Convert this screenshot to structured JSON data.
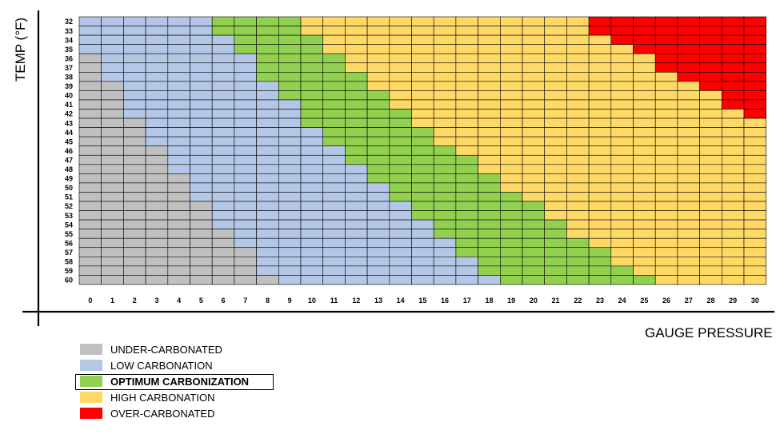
{
  "chart_data": {
    "type": "heatmap",
    "title": "",
    "xlabel": "GAUGE PRESSURE",
    "ylabel": "TEMP (°F)",
    "x_ticks": [
      0,
      1,
      2,
      3,
      4,
      5,
      6,
      7,
      8,
      9,
      10,
      11,
      12,
      13,
      14,
      15,
      16,
      17,
      18,
      19,
      20,
      21,
      22,
      23,
      24,
      25,
      26,
      27,
      28,
      29,
      30
    ],
    "y_ticks": [
      32,
      33,
      34,
      35,
      36,
      37,
      38,
      39,
      40,
      41,
      42,
      43,
      44,
      45,
      46,
      47,
      48,
      49,
      50,
      51,
      52,
      53,
      54,
      55,
      56,
      57,
      58,
      59,
      60
    ],
    "categories": [
      {
        "key": "under",
        "label": "UNDER-CARBONATED",
        "color": "#c0c0c0"
      },
      {
        "key": "low",
        "label": "LOW CARBONATION",
        "color": "#b4c7e7"
      },
      {
        "key": "optimum",
        "label": "OPTIMUM CARBONIZATION",
        "color": "#92d050",
        "highlighted": true
      },
      {
        "key": "high",
        "label": "HIGH CARBONATION",
        "color": "#ffd966"
      },
      {
        "key": "over",
        "label": "OVER-CARBONATED",
        "color": "#ff0000"
      }
    ],
    "rows": [
      {
        "temp": 32,
        "under_max": -1,
        "low_max": 5,
        "opt_max": 9,
        "over_min": 23
      },
      {
        "temp": 33,
        "under_max": -1,
        "low_max": 5,
        "opt_max": 9,
        "over_min": 23
      },
      {
        "temp": 34,
        "under_max": -1,
        "low_max": 6,
        "opt_max": 10,
        "over_min": 24
      },
      {
        "temp": 35,
        "under_max": -1,
        "low_max": 6,
        "opt_max": 10,
        "over_min": 25
      },
      {
        "temp": 36,
        "under_max": 0,
        "low_max": 7,
        "opt_max": 11,
        "over_min": 26
      },
      {
        "temp": 37,
        "under_max": 0,
        "low_max": 7,
        "opt_max": 11,
        "over_min": 26
      },
      {
        "temp": 38,
        "under_max": 0,
        "low_max": 7,
        "opt_max": 12,
        "over_min": 27
      },
      {
        "temp": 39,
        "under_max": 1,
        "low_max": 8,
        "opt_max": 12,
        "over_min": 28
      },
      {
        "temp": 40,
        "under_max": 1,
        "low_max": 8,
        "opt_max": 13,
        "over_min": 29
      },
      {
        "temp": 41,
        "under_max": 1,
        "low_max": 9,
        "opt_max": 13,
        "over_min": 29
      },
      {
        "temp": 42,
        "under_max": 1,
        "low_max": 9,
        "opt_max": 14,
        "over_min": 30
      },
      {
        "temp": 43,
        "under_max": 2,
        "low_max": 9,
        "opt_max": 14,
        "over_min": 31
      },
      {
        "temp": 44,
        "under_max": 2,
        "low_max": 10,
        "opt_max": 15,
        "over_min": 31
      },
      {
        "temp": 45,
        "under_max": 2,
        "low_max": 10,
        "opt_max": 15,
        "over_min": 31
      },
      {
        "temp": 46,
        "under_max": 3,
        "low_max": 11,
        "opt_max": 16,
        "over_min": 31
      },
      {
        "temp": 47,
        "under_max": 3,
        "low_max": 11,
        "opt_max": 17,
        "over_min": 31
      },
      {
        "temp": 48,
        "under_max": 3,
        "low_max": 12,
        "opt_max": 17,
        "over_min": 31
      },
      {
        "temp": 49,
        "under_max": 4,
        "low_max": 12,
        "opt_max": 18,
        "over_min": 31
      },
      {
        "temp": 50,
        "under_max": 4,
        "low_max": 13,
        "opt_max": 18,
        "over_min": 31
      },
      {
        "temp": 51,
        "under_max": 4,
        "low_max": 13,
        "opt_max": 19,
        "over_min": 31
      },
      {
        "temp": 52,
        "under_max": 5,
        "low_max": 14,
        "opt_max": 20,
        "over_min": 31
      },
      {
        "temp": 53,
        "under_max": 5,
        "low_max": 14,
        "opt_max": 20,
        "over_min": 31
      },
      {
        "temp": 54,
        "under_max": 5,
        "low_max": 15,
        "opt_max": 21,
        "over_min": 31
      },
      {
        "temp": 55,
        "under_max": 6,
        "low_max": 15,
        "opt_max": 21,
        "over_min": 31
      },
      {
        "temp": 56,
        "under_max": 6,
        "low_max": 16,
        "opt_max": 22,
        "over_min": 31
      },
      {
        "temp": 57,
        "under_max": 7,
        "low_max": 16,
        "opt_max": 23,
        "over_min": 31
      },
      {
        "temp": 58,
        "under_max": 7,
        "low_max": 17,
        "opt_max": 23,
        "over_min": 31
      },
      {
        "temp": 59,
        "under_max": 7,
        "low_max": 17,
        "opt_max": 24,
        "over_min": 31
      },
      {
        "temp": 60,
        "under_max": 8,
        "low_max": 18,
        "opt_max": 25,
        "over_min": 31
      }
    ],
    "grid": true,
    "legend_placement": "bottom-left"
  }
}
